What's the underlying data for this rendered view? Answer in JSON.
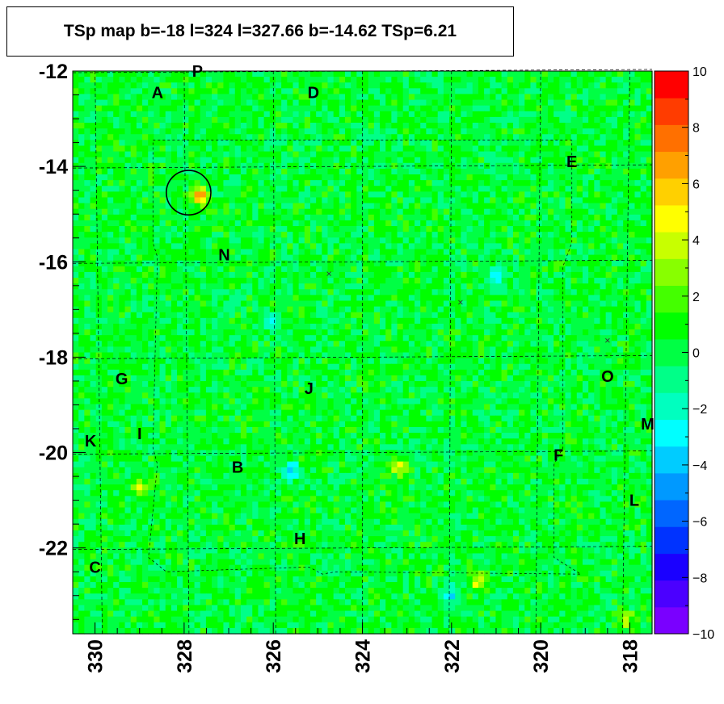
{
  "chart_data": {
    "type": "heatmap",
    "title": "TSp map b=-18 l=324 l=327.66 b=-14.62 TSp=6.21",
    "x_axis": {
      "label": "",
      "range": [
        330.5,
        317.5
      ],
      "reversed": true,
      "tick_labels": [
        "330",
        "328",
        "326",
        "324",
        "322",
        "320",
        "318"
      ],
      "tick_values": [
        330,
        328,
        326,
        324,
        322,
        320,
        318
      ]
    },
    "y_axis": {
      "label": "",
      "range": [
        -23.8,
        -12.0
      ],
      "tick_labels": [
        "-12",
        "-14",
        "-16",
        "-18",
        "-20",
        "-22"
      ],
      "tick_values": [
        -12,
        -14,
        -16,
        -18,
        -20,
        -22
      ]
    },
    "color_scale": {
      "range": [
        -10,
        10
      ],
      "tick_labels": [
        "10",
        "8",
        "6",
        "4",
        "2",
        "0",
        "−2",
        "−4",
        "−6",
        "−8",
        "−10"
      ],
      "tick_values": [
        10,
        8,
        6,
        4,
        2,
        0,
        -2,
        -4,
        -6,
        -8,
        -10
      ],
      "colors": [
        "#7a00ff",
        "#4b00ff",
        "#1a00ff",
        "#0033ff",
        "#0066ff",
        "#0099ff",
        "#00ccff",
        "#00ffff",
        "#00ffbf",
        "#00ff88",
        "#00ff44",
        "#00ff00",
        "#44ff00",
        "#88ff00",
        "#c8ff00",
        "#ffff00",
        "#ffd000",
        "#ffa000",
        "#ff7000",
        "#ff3c00",
        "#ff0000"
      ]
    },
    "background_value": 0.3,
    "grid": true,
    "hotspots": [
      {
        "l": 327.66,
        "b": -14.62,
        "value": 6.21
      },
      {
        "l": 321.4,
        "b": -22.7,
        "value": 4.5
      },
      {
        "l": 323.2,
        "b": -20.3,
        "value": 3.8
      },
      {
        "l": 329.0,
        "b": -20.7,
        "value": 3.0
      },
      {
        "l": 318.1,
        "b": -23.5,
        "value": 3.2
      }
    ],
    "coldspots": [
      {
        "l": 325.6,
        "b": -20.4,
        "value": -4.2
      },
      {
        "l": 321.0,
        "b": -16.3,
        "value": -3.5
      },
      {
        "l": 326.0,
        "b": -17.3,
        "value": -2.8
      },
      {
        "l": 322.0,
        "b": -23.0,
        "value": -3.0
      }
    ],
    "highlight_circle": {
      "l": 327.9,
      "b": -14.55,
      "radius_deg": 0.5
    },
    "cross_markers": [
      {
        "l": 324.75,
        "b": -16.25
      },
      {
        "l": 321.8,
        "b": -16.85
      },
      {
        "l": 318.5,
        "b": -17.65
      }
    ],
    "region_labels": [
      {
        "text": "P",
        "l": 327.7,
        "b": -12.0
      },
      {
        "text": "A",
        "l": 328.6,
        "b": -12.45
      },
      {
        "text": "D",
        "l": 325.1,
        "b": -12.45
      },
      {
        "text": "E",
        "l": 319.3,
        "b": -13.9
      },
      {
        "text": "N",
        "l": 327.1,
        "b": -15.85
      },
      {
        "text": "G",
        "l": 329.4,
        "b": -18.45
      },
      {
        "text": "O",
        "l": 318.5,
        "b": -18.4
      },
      {
        "text": "J",
        "l": 325.2,
        "b": -18.65
      },
      {
        "text": "M",
        "l": 317.6,
        "b": -19.4
      },
      {
        "text": "I",
        "l": 329.0,
        "b": -19.6
      },
      {
        "text": "K",
        "l": 330.1,
        "b": -19.75
      },
      {
        "text": "F",
        "l": 319.6,
        "b": -20.05
      },
      {
        "text": "B",
        "l": 326.8,
        "b": -20.3
      },
      {
        "text": "L",
        "l": 317.9,
        "b": -21.0
      },
      {
        "text": "H",
        "l": 325.4,
        "b": -21.8
      },
      {
        "text": "C",
        "l": 330.0,
        "b": -22.4
      }
    ]
  }
}
